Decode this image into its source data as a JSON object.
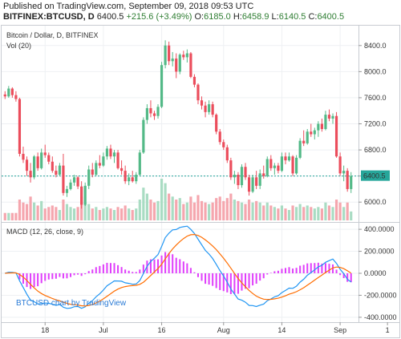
{
  "header": {
    "published": "Published on TradingView.com, September 09, 2018 09:53 UTC",
    "symbol": "BITFINEX:BTCUSD, D",
    "last": "6400.5",
    "change": "+215.6 (+3.49%)",
    "o_label": "O:",
    "o_val": "6185.0",
    "h_label": "H:",
    "h_val": "6458.9",
    "l_label": "L:",
    "l_val": "6140.5",
    "c_label": "C:",
    "c_val": "6400.5"
  },
  "panes": {
    "price_title": "Bitcoin / Dollar, D, BITFINEX",
    "volume_title": "Vol (20)",
    "macd_title": "MACD (12, 26, close, 9)",
    "price_tag": "6400.5",
    "watermark": "BTCUSD chart by TradingView"
  },
  "colors": {
    "up": "#53b987",
    "down": "#eb4d5c",
    "vol_up": "#a9dcc3",
    "vol_down": "#f5a6ae",
    "macd_line": "#2196f3",
    "signal_line": "#ff6d00",
    "histogram": "#e040fb",
    "last_line": "#26a69a"
  },
  "chart_data": {
    "type": "candlestick",
    "x_ticks": [
      "18",
      "Jul",
      "16",
      "Aug",
      "14",
      "Sep",
      "1"
    ],
    "price_ticks": [
      "8400.0",
      "8000.0",
      "7600.0",
      "7200.0",
      "6800.0",
      "6400.0",
      "6000.0"
    ],
    "price_tick_values": [
      8400,
      8000,
      7600,
      7200,
      6800,
      6400,
      6000
    ],
    "price_ylim": [
      5720,
      8680
    ],
    "macd_ticks": [
      "400.0000",
      "200.0000",
      "0.0000",
      "-200.0000",
      "-400.0000"
    ],
    "macd_tick_values": [
      400,
      200,
      0,
      -200,
      -400
    ],
    "macd_ylim": [
      -430,
      430
    ],
    "candles": [
      [
        7650,
        7700,
        7580,
        7620,
        5
      ],
      [
        7620,
        7780,
        7600,
        7740,
        5
      ],
      [
        7740,
        7760,
        7600,
        7640,
        5
      ],
      [
        7640,
        7700,
        7540,
        7580,
        5
      ],
      [
        7580,
        7600,
        6700,
        6740,
        14
      ],
      [
        6740,
        6850,
        6600,
        6650,
        12
      ],
      [
        6650,
        6700,
        6400,
        6480,
        11
      ],
      [
        6480,
        6600,
        6300,
        6380,
        16
      ],
      [
        6380,
        6720,
        6350,
        6700,
        12
      ],
      [
        6700,
        6760,
        6480,
        6520,
        10
      ],
      [
        6520,
        6820,
        6500,
        6760,
        13
      ],
      [
        6760,
        6880,
        6680,
        6720,
        8
      ],
      [
        6720,
        6760,
        6580,
        6620,
        9
      ],
      [
        6620,
        6700,
        6450,
        6480,
        10
      ],
      [
        6480,
        6560,
        6380,
        6420,
        9
      ],
      [
        6420,
        6600,
        6400,
        6560,
        7
      ],
      [
        6560,
        6740,
        6100,
        6140,
        14
      ],
      [
        6140,
        6250,
        6080,
        6200,
        11
      ],
      [
        6200,
        6350,
        6180,
        6300,
        9
      ],
      [
        6300,
        6420,
        6250,
        6380,
        8
      ],
      [
        6380,
        6400,
        6200,
        6240,
        9
      ],
      [
        6240,
        6320,
        5900,
        5960,
        16
      ],
      [
        5960,
        6300,
        5940,
        6250,
        12
      ],
      [
        6250,
        6560,
        6200,
        6500,
        11
      ],
      [
        6500,
        6600,
        6380,
        6420,
        8
      ],
      [
        6420,
        6640,
        6400,
        6600,
        9
      ],
      [
        6600,
        6720,
        6520,
        6560,
        7
      ],
      [
        6560,
        6760,
        6540,
        6700,
        8
      ],
      [
        6700,
        6860,
        6650,
        6820,
        9
      ],
      [
        6820,
        6880,
        6660,
        6700,
        8
      ],
      [
        6700,
        6800,
        6600,
        6760,
        7
      ],
      [
        6760,
        6800,
        6500,
        6520,
        9
      ],
      [
        6520,
        6640,
        6420,
        6480,
        8
      ],
      [
        6480,
        6560,
        6280,
        6320,
        10
      ],
      [
        6320,
        6440,
        6260,
        6380,
        8
      ],
      [
        6380,
        6480,
        6300,
        6320,
        7
      ],
      [
        6320,
        6460,
        6280,
        6420,
        8
      ],
      [
        6420,
        6800,
        6400,
        6760,
        14
      ],
      [
        6760,
        7300,
        6740,
        7260,
        22
      ],
      [
        7260,
        7500,
        7200,
        7440,
        18
      ],
      [
        7440,
        7560,
        7300,
        7360,
        14
      ],
      [
        7360,
        7400,
        7260,
        7320,
        12
      ],
      [
        7320,
        7500,
        7280,
        7460,
        13
      ],
      [
        7460,
        8150,
        7440,
        8100,
        28
      ],
      [
        8100,
        8480,
        8050,
        8400,
        25
      ],
      [
        8400,
        8460,
        8100,
        8160,
        18
      ],
      [
        8160,
        8300,
        8080,
        8200,
        16
      ],
      [
        8200,
        8280,
        7900,
        8000,
        14
      ],
      [
        8000,
        8280,
        7960,
        8260,
        15
      ],
      [
        8260,
        8320,
        8180,
        8220,
        11
      ],
      [
        8220,
        8340,
        8140,
        8280,
        12
      ],
      [
        8280,
        8300,
        7900,
        7920,
        16
      ],
      [
        7920,
        7960,
        7760,
        7800,
        12
      ],
      [
        7800,
        7820,
        7500,
        7560,
        17
      ],
      [
        7560,
        7620,
        7420,
        7480,
        13
      ],
      [
        7480,
        7540,
        7300,
        7380,
        12
      ],
      [
        7380,
        7560,
        7340,
        7500,
        11
      ],
      [
        7500,
        7540,
        7300,
        7340,
        12
      ],
      [
        7340,
        7360,
        7040,
        7080,
        15
      ],
      [
        7080,
        7120,
        6880,
        6920,
        16
      ],
      [
        6920,
        6960,
        6800,
        6840,
        13
      ],
      [
        6840,
        6880,
        6600,
        6640,
        15
      ],
      [
        6640,
        6680,
        6340,
        6380,
        18
      ],
      [
        6380,
        6480,
        6280,
        6420,
        14
      ],
      [
        6420,
        6460,
        6200,
        6260,
        13
      ],
      [
        6260,
        6580,
        6220,
        6540,
        12
      ],
      [
        6540,
        6600,
        6340,
        6380,
        11
      ],
      [
        6380,
        6420,
        6100,
        6160,
        14
      ],
      [
        6160,
        6420,
        6140,
        6380,
        12
      ],
      [
        6380,
        6480,
        6200,
        6250,
        13
      ],
      [
        6250,
        6500,
        6200,
        6440,
        12
      ],
      [
        6440,
        6560,
        6360,
        6400,
        10
      ],
      [
        6400,
        6700,
        6380,
        6660,
        12
      ],
      [
        6660,
        6720,
        6480,
        6520,
        10
      ],
      [
        6520,
        6600,
        6420,
        6560,
        9
      ],
      [
        6560,
        6600,
        6440,
        6480,
        8
      ],
      [
        6480,
        6760,
        6460,
        6700,
        10
      ],
      [
        6700,
        6760,
        6580,
        6640,
        8
      ],
      [
        6640,
        6760,
        6620,
        6700,
        7
      ],
      [
        6700,
        6720,
        6400,
        6440,
        10
      ],
      [
        6440,
        6720,
        6420,
        6680,
        9
      ],
      [
        6680,
        6980,
        6660,
        6940,
        11
      ],
      [
        6940,
        7100,
        6860,
        6900,
        9
      ],
      [
        6900,
        7120,
        6880,
        7080,
        10
      ],
      [
        7080,
        7200,
        7000,
        7040,
        9
      ],
      [
        7040,
        7140,
        6960,
        7100,
        8
      ],
      [
        7100,
        7240,
        7000,
        7200,
        9
      ],
      [
        7200,
        7280,
        7080,
        7120,
        8
      ],
      [
        7120,
        7400,
        7100,
        7340,
        12
      ],
      [
        7340,
        7420,
        7240,
        7280,
        10
      ],
      [
        7280,
        7360,
        7200,
        7320,
        9
      ],
      [
        7320,
        7380,
        6680,
        6700,
        14
      ],
      [
        6700,
        6760,
        6400,
        6440,
        12
      ],
      [
        6440,
        6560,
        6320,
        6480,
        9
      ],
      [
        6480,
        6520,
        6160,
        6200,
        12
      ],
      [
        6200,
        6460,
        6140,
        6400,
        6
      ]
    ]
  }
}
